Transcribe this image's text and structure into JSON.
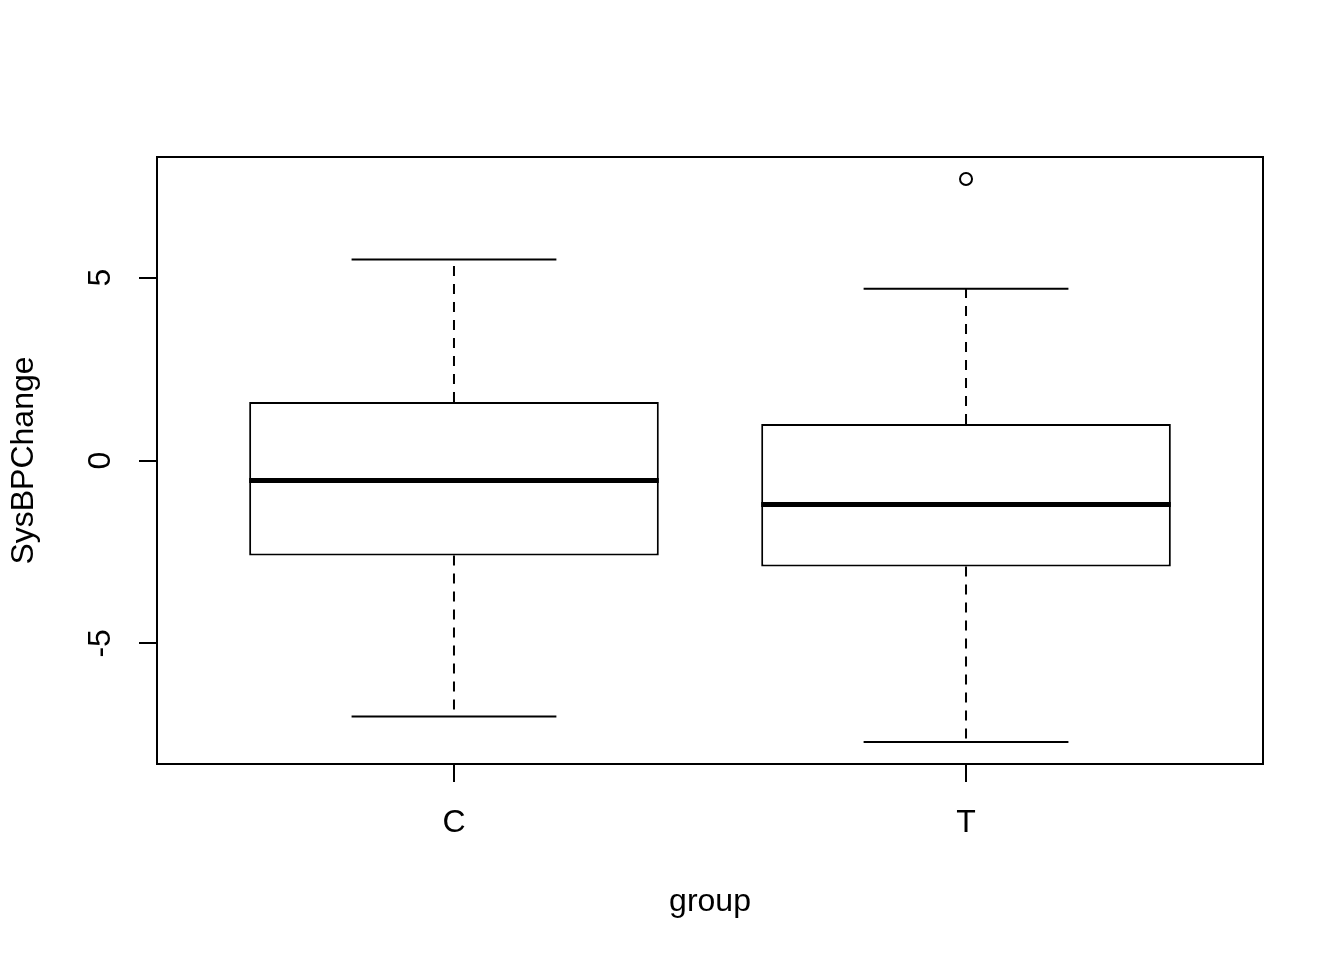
{
  "chart_data": {
    "type": "box",
    "xlabel": "group",
    "ylabel": "SysBPChange",
    "categories": [
      "C",
      "T"
    ],
    "color": "#000000",
    "boxes": [
      {
        "low": -7.0,
        "q1": -2.6,
        "median": -0.55,
        "q3": 1.6,
        "high": 5.5
      },
      {
        "low": -7.7,
        "q1": -2.9,
        "median": -1.2,
        "q3": 1.0,
        "high": 4.7,
        "outliers": [
          7.7
        ]
      }
    ],
    "ylim": [
      -8.3,
      8.3
    ],
    "yticks": [
      -5,
      0,
      5
    ]
  }
}
